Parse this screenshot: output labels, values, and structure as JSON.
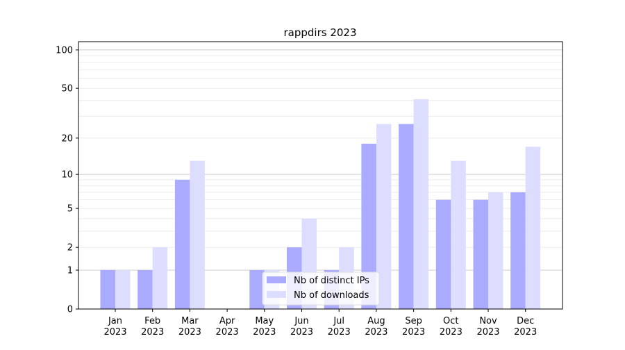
{
  "chart_data": {
    "type": "bar",
    "title": "rappdirs 2023",
    "scale": "log(1+y)",
    "ylim": [
      0,
      116
    ],
    "yticks": [
      0,
      1,
      2,
      5,
      10,
      20,
      50,
      100
    ],
    "grid": true,
    "legend_position": "lower-center",
    "categories": [
      "Jan\n2023",
      "Feb\n2023",
      "Mar\n2023",
      "Apr\n2023",
      "May\n2023",
      "Jun\n2023",
      "Jul\n2023",
      "Aug\n2023",
      "Sep\n2023",
      "Oct\n2023",
      "Nov\n2023",
      "Dec\n2023"
    ],
    "series": [
      {
        "name": "Nb of distinct IPs",
        "color": "#aaaaff",
        "values": [
          1,
          1,
          9,
          0,
          1,
          2,
          1,
          18,
          26,
          6,
          6,
          7
        ]
      },
      {
        "name": "Nb of downloads",
        "color": "#ddddff",
        "values": [
          1,
          2,
          13,
          0,
          1,
          4,
          2,
          26,
          41,
          13,
          7,
          17
        ]
      }
    ]
  }
}
